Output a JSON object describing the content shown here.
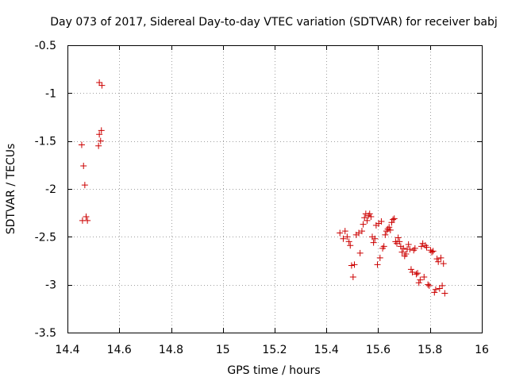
{
  "chart_data": {
    "type": "scatter",
    "title": "Day 073 of 2017, Sidereal Day-to-day VTEC variation (SDTVAR) for receiver babj",
    "xlabel": "GPS time / hours",
    "ylabel": "SDTVAR / TECUs",
    "xlim": [
      14.4,
      16
    ],
    "ylim": [
      -3.5,
      -0.5
    ],
    "xticks": [
      14.4,
      14.6,
      14.8,
      15,
      15.2,
      15.4,
      15.6,
      15.8,
      16
    ],
    "xtick_labels": [
      "14.4",
      "14.6",
      "14.8",
      "15",
      "15.2",
      "15.4",
      "15.6",
      "15.8",
      "16"
    ],
    "yticks": [
      -3.5,
      -3,
      -2.5,
      -2,
      -1.5,
      -1,
      -0.5
    ],
    "ytick_labels": [
      "-3.5",
      "-3",
      "-2.5",
      "-2",
      "-1.5",
      "-1",
      "-0.5"
    ],
    "grid": true,
    "marker": "+",
    "color": "#cc0000",
    "series": [
      {
        "name": "SDTVAR",
        "points": [
          [
            14.523,
            -0.89
          ],
          [
            14.533,
            -0.92
          ],
          [
            14.523,
            -1.43
          ],
          [
            14.531,
            -1.39
          ],
          [
            14.528,
            -1.5
          ],
          [
            14.52,
            -1.55
          ],
          [
            14.455,
            -1.54
          ],
          [
            14.462,
            -1.76
          ],
          [
            14.467,
            -1.96
          ],
          [
            14.458,
            -2.33
          ],
          [
            14.472,
            -2.29
          ],
          [
            14.477,
            -2.33
          ],
          [
            15.452,
            -2.46
          ],
          [
            15.465,
            -2.52
          ],
          [
            15.472,
            -2.44
          ],
          [
            15.48,
            -2.5
          ],
          [
            15.487,
            -2.55
          ],
          [
            15.492,
            -2.59
          ],
          [
            15.497,
            -2.8
          ],
          [
            15.503,
            -2.92
          ],
          [
            15.508,
            -2.79
          ],
          [
            15.515,
            -2.48
          ],
          [
            15.525,
            -2.46
          ],
          [
            15.53,
            -2.67
          ],
          [
            15.537,
            -2.44
          ],
          [
            15.542,
            -2.37
          ],
          [
            15.547,
            -2.3
          ],
          [
            15.552,
            -2.26
          ],
          [
            15.557,
            -2.33
          ],
          [
            15.562,
            -2.28
          ],
          [
            15.567,
            -2.26
          ],
          [
            15.572,
            -2.29
          ],
          [
            15.577,
            -2.5
          ],
          [
            15.582,
            -2.56
          ],
          [
            15.587,
            -2.52
          ],
          [
            15.592,
            -2.38
          ],
          [
            15.597,
            -2.79
          ],
          [
            15.602,
            -2.36
          ],
          [
            15.607,
            -2.72
          ],
          [
            15.612,
            -2.34
          ],
          [
            15.617,
            -2.62
          ],
          [
            15.622,
            -2.6
          ],
          [
            15.627,
            -2.48
          ],
          [
            15.632,
            -2.44
          ],
          [
            15.637,
            -2.42
          ],
          [
            15.642,
            -2.4
          ],
          [
            15.647,
            -2.43
          ],
          [
            15.652,
            -2.35
          ],
          [
            15.657,
            -2.32
          ],
          [
            15.662,
            -2.31
          ],
          [
            15.667,
            -2.55
          ],
          [
            15.672,
            -2.57
          ],
          [
            15.677,
            -2.51
          ],
          [
            15.682,
            -2.55
          ],
          [
            15.687,
            -2.6
          ],
          [
            15.692,
            -2.66
          ],
          [
            15.697,
            -2.62
          ],
          [
            15.702,
            -2.7
          ],
          [
            15.707,
            -2.68
          ],
          [
            15.712,
            -2.63
          ],
          [
            15.717,
            -2.58
          ],
          [
            15.722,
            -2.63
          ],
          [
            15.727,
            -2.84
          ],
          [
            15.732,
            -2.87
          ],
          [
            15.737,
            -2.64
          ],
          [
            15.742,
            -2.62
          ],
          [
            15.747,
            -2.89
          ],
          [
            15.752,
            -2.88
          ],
          [
            15.757,
            -2.98
          ],
          [
            15.762,
            -2.95
          ],
          [
            15.767,
            -2.6
          ],
          [
            15.772,
            -2.57
          ],
          [
            15.777,
            -2.92
          ],
          [
            15.782,
            -2.59
          ],
          [
            15.787,
            -2.61
          ],
          [
            15.792,
            -3.0
          ],
          [
            15.797,
            -3.01
          ],
          [
            15.802,
            -2.64
          ],
          [
            15.807,
            -2.66
          ],
          [
            15.812,
            -2.65
          ],
          [
            15.817,
            -3.08
          ],
          [
            15.822,
            -3.05
          ],
          [
            15.827,
            -2.73
          ],
          [
            15.832,
            -2.76
          ],
          [
            15.837,
            -3.04
          ],
          [
            15.842,
            -2.72
          ],
          [
            15.847,
            -3.01
          ],
          [
            15.852,
            -2.78
          ],
          [
            15.857,
            -3.09
          ]
        ]
      }
    ]
  }
}
